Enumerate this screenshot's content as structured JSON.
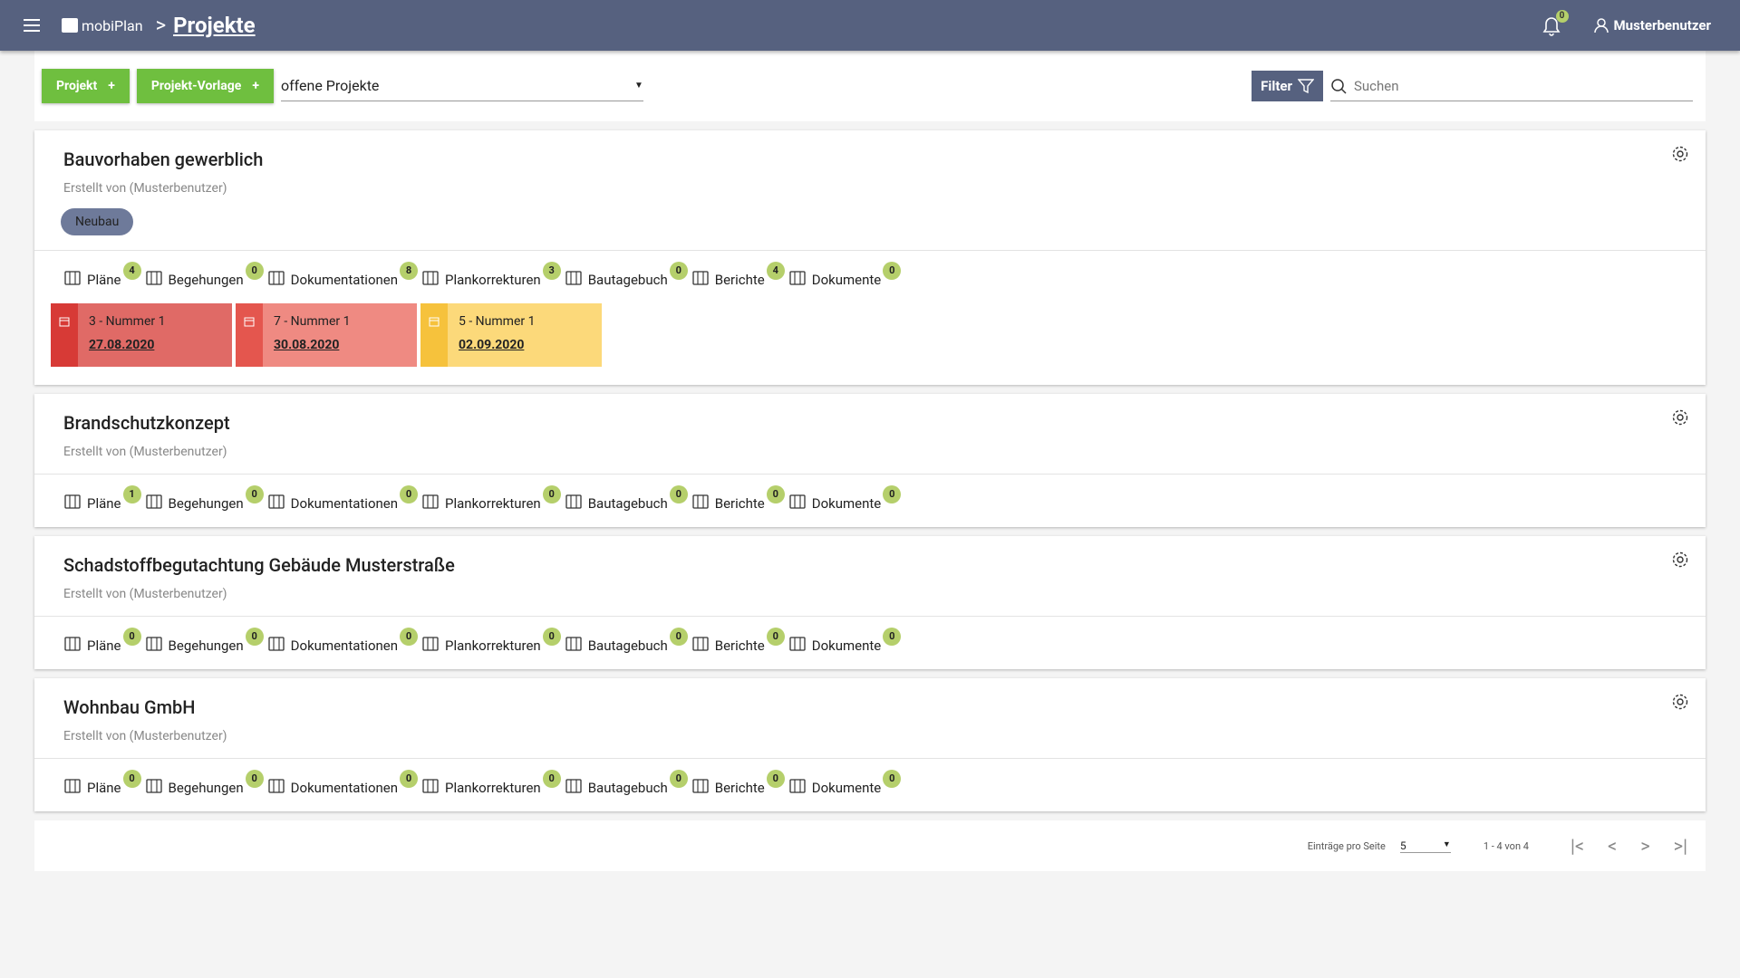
{
  "header": {
    "brand": "mobiPlan",
    "breadcrumb": "Projekte",
    "notifications": 0,
    "user": "Musterbenutzer"
  },
  "toolbar": {
    "buttons": [
      "Projekt",
      "Projekt-Vorlage"
    ],
    "status_filter": "offene Projekte",
    "filter_button": "Filter",
    "search_placeholder": "Suchen"
  },
  "modules": [
    "Pläne",
    "Begehungen",
    "Dokumentationen",
    "Plankorrekturen",
    "Bautagebuch",
    "Berichte",
    "Dokumente"
  ],
  "projects": [
    {
      "title": "Bauvorhaben gewerblich",
      "subtitle": "Erstellt von (Musterbenutzer)",
      "tags": [
        "Neubau"
      ],
      "counts": [
        4,
        0,
        8,
        3,
        0,
        4,
        0
      ],
      "deadlines": [
        {
          "label": "3 - Nummer 1",
          "date": "27.08.2020"
        },
        {
          "label": "7 - Nummer 1",
          "date": "30.08.2020"
        },
        {
          "label": "5 - Nummer 1",
          "date": "02.09.2020"
        }
      ]
    },
    {
      "title": "Brandschutzkonzept",
      "subtitle": "Erstellt von (Musterbenutzer)",
      "tags": [],
      "counts": [
        1,
        0,
        0,
        0,
        0,
        0,
        0
      ],
      "deadlines": []
    },
    {
      "title": "Schadstoffbegutachtung Gebäude Musterstraße",
      "subtitle": "Erstellt von (Musterbenutzer)",
      "tags": [],
      "counts": [
        0,
        0,
        0,
        0,
        0,
        0,
        0
      ],
      "deadlines": []
    },
    {
      "title": "Wohnbau GmbH",
      "subtitle": "Erstellt von (Musterbenutzer)",
      "tags": [],
      "counts": [
        0,
        0,
        0,
        0,
        0,
        0,
        0
      ],
      "deadlines": []
    }
  ],
  "pagination": {
    "per_page_label": "Einträge pro Seite",
    "per_page": 5,
    "range": "1 - 4 von 4"
  }
}
